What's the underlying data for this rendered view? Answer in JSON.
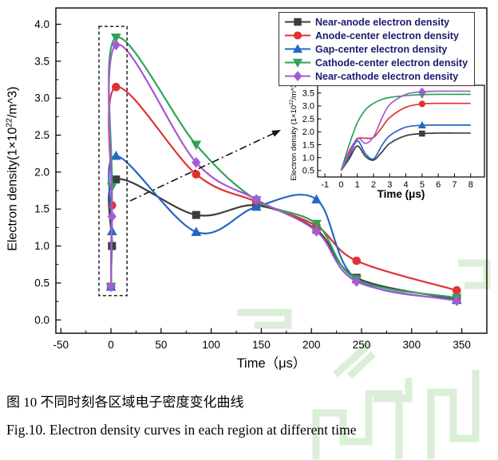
{
  "figure": {
    "caption_zh": "图 10 不同时刻各区域电子密度变化曲线",
    "caption_en": "Fig.10. Electron density curves in each region at different time",
    "watermark_color": "#b9dfb2"
  },
  "chart_data": {
    "type": "line",
    "title": "",
    "xlabel": "Time（μs）",
    "ylabel": "Electron density(1×10^22/m^3)",
    "ylabel_parts": {
      "prefix": "Electron density(1×10",
      "sup": "22",
      "suffix": "/m^3)"
    },
    "xlim": [
      -55,
      375
    ],
    "ylim": [
      -0.18,
      4.22
    ],
    "xticks": [
      -50,
      0,
      50,
      100,
      150,
      200,
      250,
      300,
      350
    ],
    "yticks": [
      0.0,
      0.5,
      1.0,
      1.5,
      2.0,
      2.5,
      3.0,
      3.5,
      4.0
    ],
    "x_minor_step": 25,
    "y_minor_step": 0.25,
    "grid": false,
    "legend_position": "top-right",
    "legend_text_color": "#1b1b6f",
    "x": [
      0,
      1,
      5,
      85,
      145,
      205,
      245,
      345
    ],
    "series": [
      {
        "name": "Near-anode electron density",
        "color": "#3d3d3d",
        "marker": "square",
        "y": [
          0.45,
          1.0,
          1.9,
          1.42,
          1.55,
          1.22,
          0.57,
          0.28
        ]
      },
      {
        "name": "Anode-center electron density",
        "color": "#e03232",
        "marker": "circle",
        "y": [
          0.45,
          1.55,
          3.15,
          1.97,
          1.6,
          1.27,
          0.8,
          0.4
        ]
      },
      {
        "name": "Gap-center electron density",
        "color": "#2467c2",
        "marker": "triangle-up",
        "y": [
          0.45,
          1.2,
          2.22,
          1.19,
          1.53,
          1.63,
          0.55,
          0.27
        ]
      },
      {
        "name": "Cathode-center electron density",
        "color": "#2fa356",
        "marker": "triangle-down",
        "y": [
          0.45,
          1.8,
          3.82,
          2.37,
          1.62,
          1.3,
          0.55,
          0.3
        ]
      },
      {
        "name": "Near-cathode electron density",
        "color": "#a55ad2",
        "marker": "diamond",
        "y": [
          0.45,
          1.4,
          3.72,
          2.13,
          1.63,
          1.2,
          0.52,
          0.26
        ]
      }
    ],
    "annotation": {
      "zoom_box": {
        "x0": -12,
        "x1": 16,
        "y0": 0.33,
        "y1": 3.97
      },
      "arrow_style": "dash-dot"
    },
    "inset": {
      "xlabel": "Time (μs)",
      "ylabel_parts": {
        "prefix": "Electron density (1×10",
        "sup": "22",
        "suffix": "/m^3)"
      },
      "xlim": [
        -1.45,
        8.85
      ],
      "ylim": [
        0.25,
        3.8
      ],
      "xticks": [
        -1,
        0,
        1,
        2,
        3,
        4,
        5,
        6,
        7,
        8
      ],
      "yticks": [
        0.5,
        1.0,
        1.5,
        2.0,
        2.5,
        3.0,
        3.5
      ],
      "x": [
        0,
        0.5,
        1,
        1.5,
        2,
        2.5,
        3,
        4,
        5,
        6,
        7,
        8
      ],
      "series": [
        {
          "name": "Near-anode",
          "color": "#3d3d3d",
          "marker": "square",
          "marker_x": 5,
          "y": [
            0.5,
            0.95,
            1.45,
            1.05,
            0.9,
            1.2,
            1.55,
            1.85,
            1.93,
            1.95,
            1.95,
            1.95
          ]
        },
        {
          "name": "Anode-center",
          "color": "#e03232",
          "marker": "circle",
          "marker_x": 5,
          "y": [
            0.5,
            1.25,
            1.72,
            1.75,
            1.78,
            2.15,
            2.55,
            2.95,
            3.08,
            3.1,
            3.1,
            3.1
          ]
        },
        {
          "name": "Gap-center",
          "color": "#2467c2",
          "marker": "triangle-up",
          "marker_x": 5,
          "y": [
            0.5,
            1.05,
            1.65,
            1.15,
            0.95,
            1.45,
            1.85,
            2.18,
            2.25,
            2.26,
            2.26,
            2.26
          ]
        },
        {
          "name": "Cathode-center",
          "color": "#2fa356",
          "marker": "triangle-down",
          "marker_x": 5,
          "y": [
            0.5,
            1.5,
            2.35,
            2.85,
            3.1,
            3.25,
            3.33,
            3.4,
            3.44,
            3.45,
            3.45,
            3.45
          ]
        },
        {
          "name": "Near-cathode",
          "color": "#a55ad2",
          "marker": "diamond",
          "marker_x": 5,
          "y": [
            0.5,
            1.15,
            1.75,
            1.55,
            1.8,
            2.5,
            3.05,
            3.45,
            3.55,
            3.57,
            3.57,
            3.57
          ]
        }
      ]
    }
  }
}
